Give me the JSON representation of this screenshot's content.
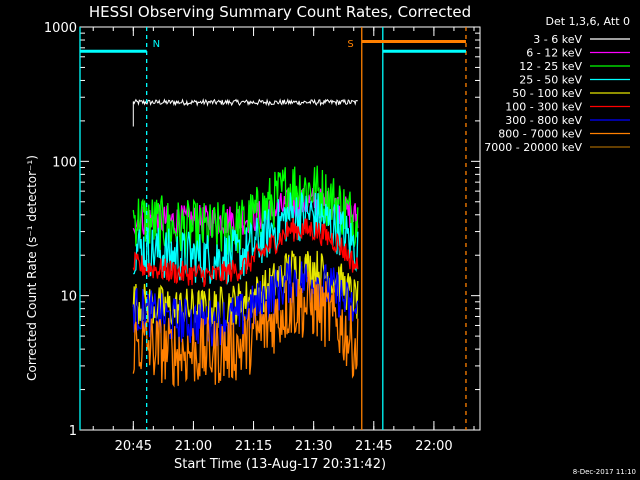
{
  "chart_data": {
    "type": "line",
    "title": "HESSI Observing Summary Count Rates, Corrected",
    "xlabel": "Start Time (13-Aug-17 20:31:42)",
    "ylabel": "Corrected Count Rate (s⁻¹ detector⁻¹)",
    "yscale": "log",
    "ylim": [
      1,
      1000
    ],
    "y_ticks": [
      "1",
      "10",
      "100",
      "1000"
    ],
    "xlim": [
      "20:31:42",
      "22:11:30"
    ],
    "x_ticks": [
      "20:45",
      "21:00",
      "21:15",
      "21:30",
      "21:45",
      "22:00"
    ],
    "timestamp": "8-Dec-2017 11:10",
    "legend_header": "Det 1,3,6, Att 0",
    "legend_position": "right",
    "data_gap": [
      "21:42:00",
      "21:42:00"
    ],
    "series": [
      {
        "name": "3 - 6 keV",
        "color": "#ffffff",
        "x": [
          "20:45",
          "20:50",
          "21:00",
          "21:10",
          "21:20",
          "21:30",
          "21:41"
        ],
        "y": [
          275,
          275,
          275,
          275,
          275,
          275,
          275
        ]
      },
      {
        "name": "6 - 12 keV",
        "color": "#ff00ff",
        "x": [
          "20:45",
          "20:55",
          "21:05",
          "21:12",
          "21:18",
          "21:24",
          "21:30",
          "21:36",
          "21:41"
        ],
        "y": [
          37,
          36,
          36,
          37,
          40,
          48,
          50,
          45,
          38
        ]
      },
      {
        "name": "12 - 25 keV",
        "color": "#00ff00",
        "x": [
          "20:45",
          "20:55",
          "21:05",
          "21:12",
          "21:18",
          "21:24",
          "21:30",
          "21:36",
          "21:41"
        ],
        "y": [
          38,
          32,
          30,
          33,
          45,
          65,
          62,
          48,
          36
        ]
      },
      {
        "name": "25 - 50 keV",
        "color": "#00ffff",
        "x": [
          "20:45",
          "20:55",
          "21:05",
          "21:12",
          "21:18",
          "21:24",
          "21:30",
          "21:36",
          "21:41"
        ],
        "y": [
          23,
          20,
          19,
          20,
          28,
          40,
          40,
          32,
          22
        ]
      },
      {
        "name": "50 - 100 keV",
        "color": "#e6e600",
        "x": [
          "20:45",
          "20:55",
          "21:05",
          "21:12",
          "21:18",
          "21:24",
          "21:30",
          "21:36",
          "21:41"
        ],
        "y": [
          9,
          8,
          8,
          9,
          11,
          16,
          16,
          13,
          9
        ]
      },
      {
        "name": "100 - 300 keV",
        "color": "#ff0000",
        "x": [
          "20:45",
          "20:55",
          "21:05",
          "21:12",
          "21:18",
          "21:24",
          "21:30",
          "21:36",
          "21:41"
        ],
        "y": [
          17,
          15,
          14,
          16,
          22,
          31,
          31,
          25,
          16
        ]
      },
      {
        "name": "300 - 800 keV",
        "color": "#0000ff",
        "x": [
          "20:45",
          "20:55",
          "21:05",
          "21:12",
          "21:18",
          "21:24",
          "21:30",
          "21:36",
          "21:41"
        ],
        "y": [
          8,
          6.5,
          6.3,
          7,
          9.5,
          13,
          13,
          10.5,
          7
        ]
      },
      {
        "name": "800 - 7000 keV",
        "color": "#ff8000",
        "x": [
          "20:45",
          "20:55",
          "21:05",
          "21:12",
          "21:18",
          "21:24",
          "21:30",
          "21:36",
          "21:41"
        ],
        "y": [
          4.5,
          3.8,
          3.8,
          4.2,
          5.8,
          8.5,
          8.5,
          6.2,
          4
        ]
      },
      {
        "name": "7000 - 20000 keV",
        "color": "#a06400",
        "x": [],
        "y": []
      }
    ],
    "saa_bars": [
      {
        "label": "",
        "color": "#00ffff",
        "start": "20:31:42",
        "end": "20:48:20",
        "y": 660
      },
      {
        "label": "",
        "color": "#00ffff",
        "start": "21:47:15",
        "end": "22:08:00",
        "y": 660
      },
      {
        "label": "",
        "color": "#ff8000",
        "start": "21:42:00",
        "end": "22:08:00",
        "y": 780
      }
    ],
    "markers": [
      {
        "label": "N",
        "color": "#00ffff",
        "time": "20:48:20",
        "style": "dashed"
      },
      {
        "label": "",
        "color": "#00ffff",
        "time": "20:31:42",
        "style": "solid"
      },
      {
        "label": "",
        "color": "#00ffff",
        "time": "21:47:15",
        "style": "solid"
      },
      {
        "label": "",
        "color": "#ff8000",
        "time": "22:08:00",
        "style": "dashed"
      },
      {
        "label": "S",
        "color": "#ff8000",
        "time": "21:42:00",
        "style": "solid"
      }
    ]
  }
}
